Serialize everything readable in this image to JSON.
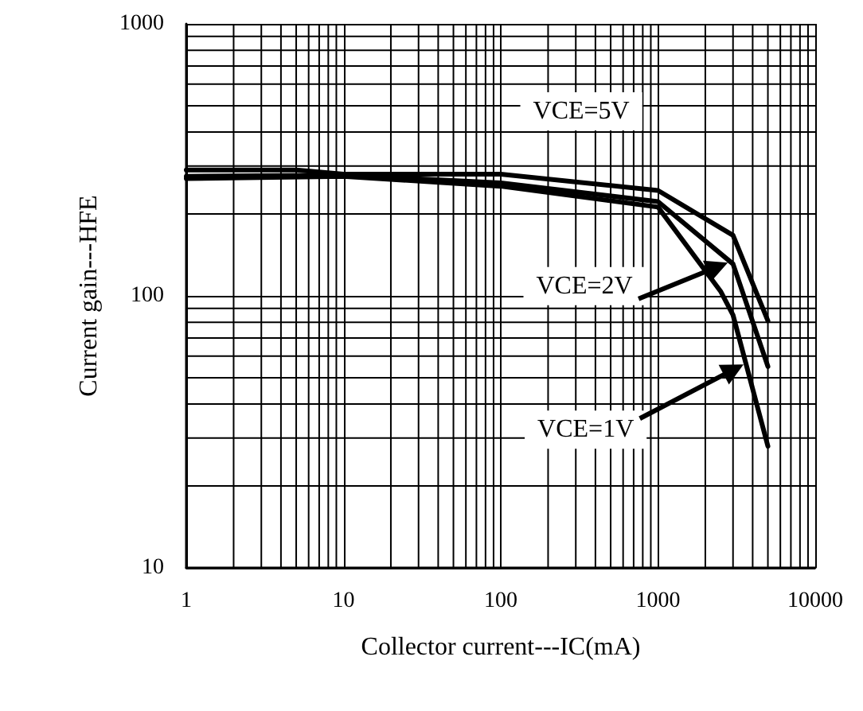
{
  "chart_data": {
    "type": "line",
    "xlabel": "Collector current---IC(mA)",
    "ylabel": "Current gain---HFE",
    "log": "xy",
    "grid": true,
    "marker": "none",
    "line_style": "solid",
    "xlim": [
      1,
      10000
    ],
    "xticks": [
      1,
      10,
      100,
      1000,
      10000
    ],
    "ylim": [
      10,
      1000
    ],
    "yticks": [
      10,
      100,
      1000
    ],
    "series": [
      {
        "color": "#000000",
        "x": [
          1,
          5,
          10,
          100,
          1000,
          3000,
          5000
        ],
        "values": [
          290,
          290,
          280,
          280,
          244,
          167,
          81
        ]
      },
      {
        "color": "#000000",
        "x": [
          1,
          10,
          100,
          1000,
          3000,
          5000
        ],
        "values": [
          275,
          278,
          260,
          222,
          131,
          55
        ]
      },
      {
        "color": "#000000",
        "x": [
          1,
          10,
          100,
          1000,
          2500,
          3000,
          5000
        ],
        "values": [
          270,
          275,
          253,
          212,
          104,
          85,
          28
        ]
      }
    ],
    "annotations": [
      "VCE=5V",
      "VCE=2V",
      "VCE=1V"
    ]
  }
}
